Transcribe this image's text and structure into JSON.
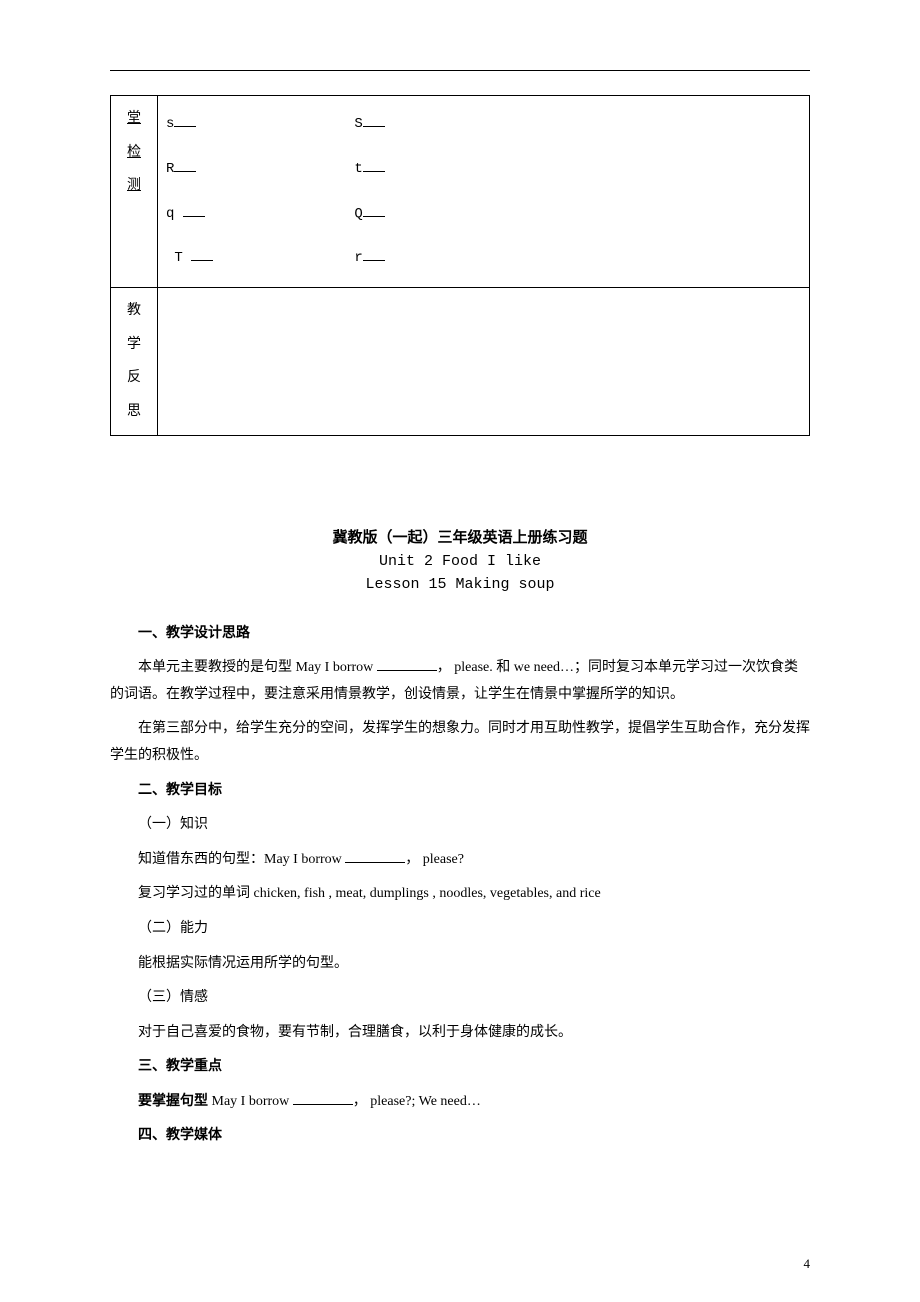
{
  "table": {
    "side_label_1_chars": [
      "堂",
      "检",
      "测"
    ],
    "side_label_2_chars": [
      "教",
      "学",
      "反",
      "思"
    ],
    "rows": [
      {
        "left": "s",
        "right": "S"
      },
      {
        "left": "R",
        "right": "t"
      },
      {
        "left": "q",
        "right": "Q"
      },
      {
        "left": "T",
        "right": "r"
      }
    ]
  },
  "title": {
    "line1": "冀教版（一起）三年级英语上册练习题",
    "line2": "Unit 2 Food I like",
    "line3": "Lesson 15 Making soup"
  },
  "sections": {
    "s1_heading": "一、教学设计思路",
    "s1_p1a": "本单元主要教授的是句型 May I borrow ",
    "s1_p1b": "， please. 和 we need…；同时复习本单元学习过一次饮食类的词语。在教学过程中，要注意采用情景教学，创设情景，让学生在情景中掌握所学的知识。",
    "s1_p2": "在第三部分中，给学生充分的空间，发挥学生的想象力。同时才用互助性教学，提倡学生互助合作，充分发挥学生的积极性。",
    "s2_heading": "二、教学目标",
    "s2_sub1": "（一）知识",
    "s2_sub1_p1a": "知道借东西的句型：May I borrow ",
    "s2_sub1_p1b": "， please?",
    "s2_sub1_p2": "复习学习过的单词 chicken, fish , meat, dumplings , noodles, vegetables, and rice",
    "s2_sub2": "（二）能力",
    "s2_sub2_p1": "能根据实际情况运用所学的句型。",
    "s2_sub3": "（三）情感",
    "s2_sub3_p1": "对于自己喜爱的食物，要有节制，合理膳食，以利于身体健康的成长。",
    "s3_heading": "三、教学重点",
    "s3_p1_label": "要掌握句型",
    "s3_p1_a": " May I borrow ",
    "s3_p1_b": "， please?; We need…",
    "s4_heading": "四、教学媒体"
  },
  "page_number": "4"
}
